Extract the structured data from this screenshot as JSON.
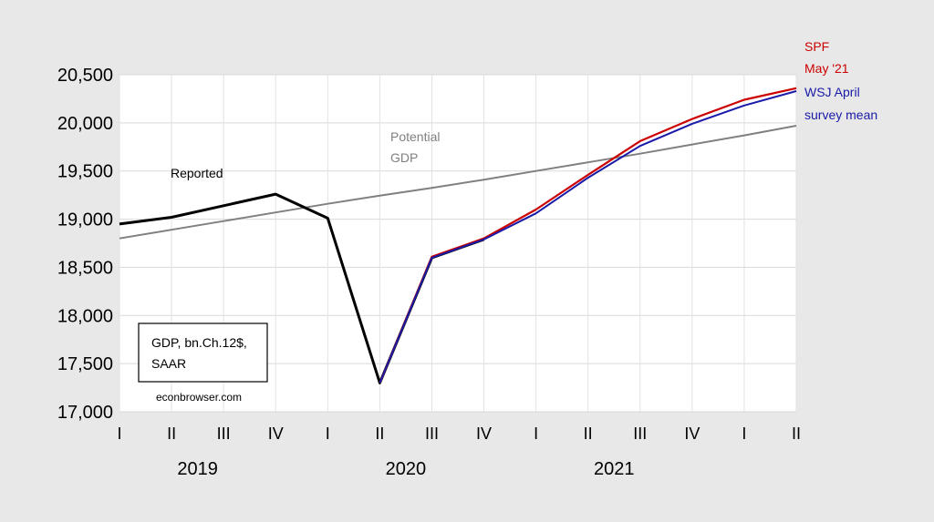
{
  "chart_data": {
    "type": "line",
    "ylim": [
      17000,
      20500
    ],
    "y_ticks": [
      "17,000",
      "17,500",
      "18,000",
      "18,500",
      "19,000",
      "19,500",
      "20,000",
      "20,500"
    ],
    "y_tick_values": [
      17000,
      17500,
      18000,
      18500,
      19000,
      19500,
      20000,
      20500
    ],
    "x_quarters": [
      "I",
      "II",
      "III",
      "IV",
      "I",
      "II",
      "III",
      "IV",
      "I",
      "II",
      "III",
      "IV",
      "I",
      "II"
    ],
    "years": [
      "2019",
      "2020",
      "2021"
    ],
    "grid": "horizontal and vertical, light gray",
    "series": [
      {
        "name": "Reported",
        "color": "#000000",
        "values": [
          18950,
          19020,
          19140,
          19260,
          19010,
          17300,
          18600,
          18790,
          null,
          null,
          null,
          null,
          null,
          null
        ]
      },
      {
        "name": "Potential GDP",
        "color": "#808080",
        "values": [
          18800,
          18890,
          18980,
          19070,
          19160,
          19245,
          19325,
          19410,
          19500,
          19590,
          19680,
          19775,
          19870,
          19970
        ]
      },
      {
        "name": "SPF May '21",
        "color": "#cc0000",
        "values": [
          null,
          null,
          null,
          null,
          null,
          17300,
          18610,
          18800,
          19100,
          19460,
          19810,
          20040,
          20240,
          20360
        ]
      },
      {
        "name": "WSJ April survey mean",
        "color": "#1a1aa8",
        "values": [
          null,
          null,
          null,
          null,
          null,
          17300,
          18600,
          18790,
          19060,
          19430,
          19760,
          19990,
          20180,
          20330
        ]
      }
    ]
  },
  "annotations": {
    "reported": "Reported",
    "potential_line1": "Potential",
    "potential_line2": "GDP",
    "spf_line1": "SPF",
    "spf_line2": "May '21",
    "wsj_line1": "WSJ April",
    "wsj_line2": "survey mean"
  },
  "note_box": {
    "line1": "GDP, bn.Ch.12$,",
    "line2": "SAAR"
  },
  "source": "econbrowser.com"
}
